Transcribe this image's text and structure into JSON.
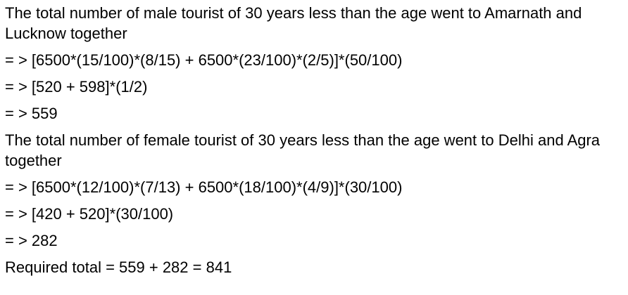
{
  "lines": [
    "The total number of male tourist of 30 years less than the age went to Amarnath and Lucknow together",
    "= > [6500*(15/100)*(8/15) + 6500*(23/100)*(2/5)]*(50/100)",
    "= > [520 + 598]*(1/2)",
    "= > 559",
    "The total number of female tourist of 30 years less than the age went to Delhi and Agra together",
    "= > [6500*(12/100)*(7/13) + 6500*(18/100)*(4/9)]*(30/100)",
    "= > [420 + 520]*(30/100)",
    "= > 282",
    "Required total = 559 + 282 = 841"
  ]
}
